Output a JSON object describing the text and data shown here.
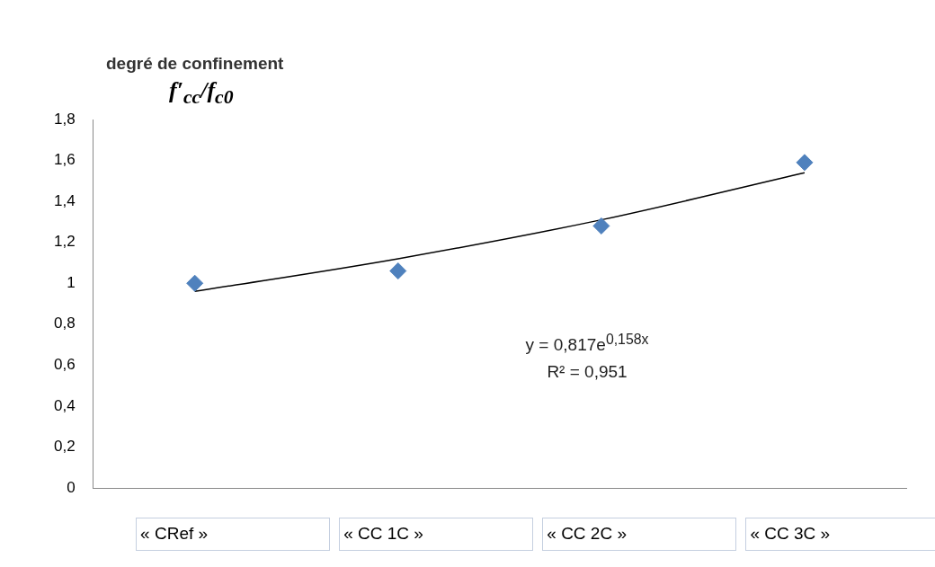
{
  "chart_data": {
    "type": "scatter",
    "title": "degré de confinement",
    "ylabel": "f′$_{cc}$/f$_{c0}$",
    "categories": [
      "« CRef »",
      "« CC 1C »",
      "« CC 2C »",
      "« CC 3C »"
    ],
    "series": [
      {
        "color": "#4f81bd",
        "marker": "diamond",
        "values": [
          1.0,
          1.06,
          1.28,
          1.59
        ]
      },
      {
        "type": "line",
        "color": "#000000",
        "marker": "none",
        "line_style": "solid",
        "values": [
          0.96,
          1.12,
          1.31,
          1.54
        ]
      }
    ],
    "ylim": [
      0,
      1.8
    ],
    "yticks": [
      0,
      {
        "value": 0.2,
        "label": "0,2"
      },
      {
        "value": 0.4,
        "label": "0,4"
      },
      {
        "value": 0.6,
        "label": "0,6"
      },
      {
        "value": 0.8,
        "label": "0,8"
      },
      1,
      {
        "value": 1.2,
        "label": "1,2"
      },
      {
        "value": 1.4,
        "label": "1,4"
      },
      {
        "value": 1.6,
        "label": "1,6"
      },
      {
        "value": 1.8,
        "label": "1,8"
      }
    ],
    "annotations": [
      "y = 0,817e$^{0,158x}$",
      "R² = 0,951"
    ],
    "grid": false,
    "legend": false
  }
}
